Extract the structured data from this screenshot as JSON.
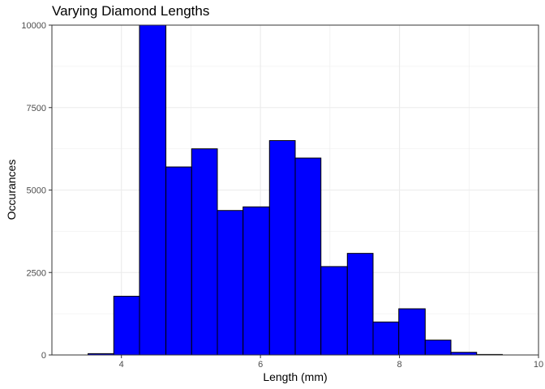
{
  "chart_data": {
    "type": "bar",
    "title": "Varying Diamond Lengths",
    "xlabel": "Length (mm)",
    "ylabel": "Occurances",
    "xlim": [
      3,
      10
    ],
    "ylim": [
      0,
      10000
    ],
    "x_ticks": [
      4,
      6,
      8,
      10
    ],
    "y_ticks": [
      0,
      2500,
      5000,
      7500,
      10000
    ],
    "bin_width": 0.373,
    "bins": [
      {
        "x0": 3.52,
        "x1": 3.89,
        "count": 40
      },
      {
        "x0": 3.89,
        "x1": 4.26,
        "count": 1780
      },
      {
        "x0": 4.26,
        "x1": 4.64,
        "count": 10000
      },
      {
        "x0": 4.64,
        "x1": 5.01,
        "count": 5700
      },
      {
        "x0": 5.01,
        "x1": 5.38,
        "count": 6250
      },
      {
        "x0": 5.38,
        "x1": 5.75,
        "count": 4380
      },
      {
        "x0": 5.75,
        "x1": 6.13,
        "count": 4490
      },
      {
        "x0": 6.13,
        "x1": 6.5,
        "count": 6500
      },
      {
        "x0": 6.5,
        "x1": 6.87,
        "count": 5970
      },
      {
        "x0": 6.87,
        "x1": 7.25,
        "count": 2680
      },
      {
        "x0": 7.25,
        "x1": 7.62,
        "count": 3080
      },
      {
        "x0": 7.62,
        "x1": 7.99,
        "count": 1000
      },
      {
        "x0": 7.99,
        "x1": 8.37,
        "count": 1400
      },
      {
        "x0": 8.37,
        "x1": 8.74,
        "count": 450
      },
      {
        "x0": 8.74,
        "x1": 9.11,
        "count": 80
      },
      {
        "x0": 9.11,
        "x1": 9.48,
        "count": 15
      }
    ],
    "grid": true,
    "bar_fill": "#0000ff",
    "bar_outline": "#000000",
    "grid_color": "#ebebeb",
    "panel_border": "#333333"
  }
}
